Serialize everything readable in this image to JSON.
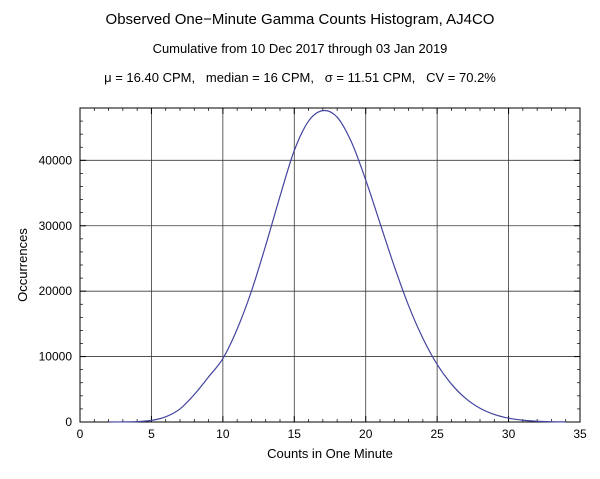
{
  "header": {
    "title": "Observed One−Minute Gamma Counts Histogram, AJ4CO",
    "subtitle": "Cumulative from 10 Dec 2017 through 03 Jan 2019",
    "stats": "μ = 16.40 CPM,   median = 16 CPM,   σ = 11.51 CPM,   CV = 70.2%"
  },
  "chart_data": {
    "type": "line",
    "title": "Observed One−Minute Gamma Counts Histogram, AJ4CO",
    "subtitle": "Cumulative from 10 Dec 2017 through 03 Jan 2019",
    "annotation": "μ = 16.40 CPM, median = 16 CPM, σ = 11.51 CPM, CV = 70.2%",
    "xlabel": "Counts in One Minute",
    "ylabel": "Occurrences",
    "xlim": [
      0,
      35
    ],
    "ylim": [
      0,
      48000
    ],
    "xticks": [
      0,
      5,
      10,
      15,
      20,
      25,
      30,
      35
    ],
    "yticks": [
      0,
      10000,
      20000,
      30000,
      40000
    ],
    "x_minor_step": 1,
    "y_minor_step": 2000,
    "grid": true,
    "legend": "none",
    "x": [
      2,
      3,
      4,
      5,
      6,
      7,
      8,
      9,
      10,
      11,
      12,
      13,
      14,
      15,
      16,
      17,
      18,
      19,
      20,
      21,
      22,
      23,
      24,
      25,
      26,
      27,
      28,
      29,
      30,
      31,
      32,
      33,
      34
    ],
    "y": [
      5,
      20,
      60,
      250,
      800,
      2000,
      4200,
      6900,
      9700,
      14200,
      20000,
      27000,
      34500,
      41500,
      46000,
      47600,
      46600,
      42800,
      37000,
      30400,
      23800,
      17800,
      12800,
      8800,
      5800,
      3600,
      2100,
      1150,
      580,
      270,
      110,
      40,
      15
    ],
    "line_color": "#4444a0",
    "frame_color": "#000000",
    "grid_color": "#3a3a3a"
  }
}
